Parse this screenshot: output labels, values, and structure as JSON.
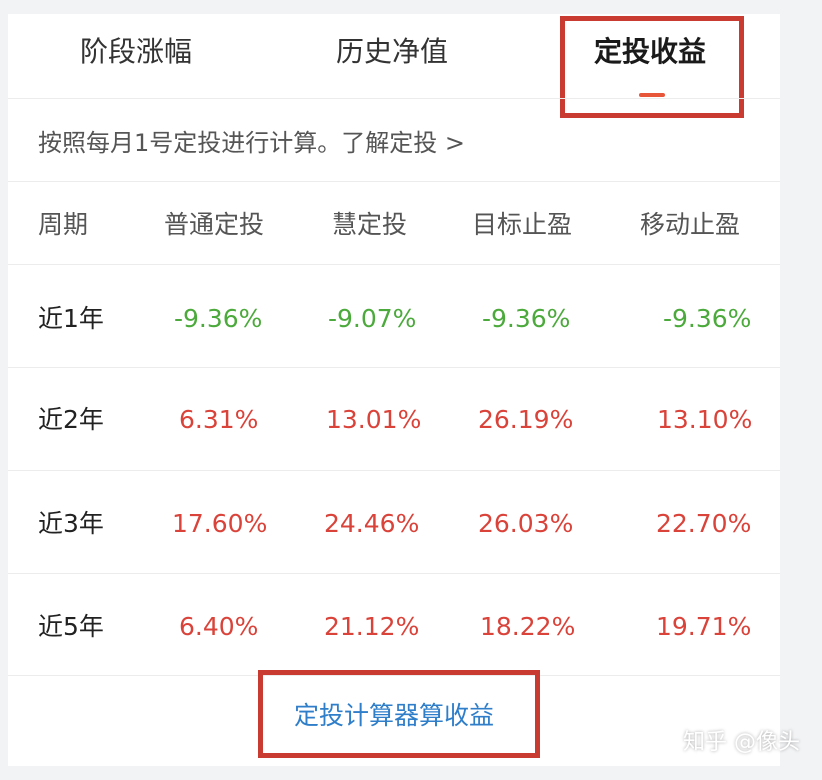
{
  "tabs": [
    {
      "label": "阶段涨幅",
      "active": false
    },
    {
      "label": "历史净值",
      "active": false
    },
    {
      "label": "定投收益",
      "active": true
    }
  ],
  "note": "按照每月1号定投进行计算。了解定投 >",
  "table": {
    "headers": [
      "周期",
      "普通定投",
      "慧定投",
      "目标止盈",
      "移动止盈"
    ],
    "rows": [
      {
        "period": "近1年",
        "values": [
          "-9.36%",
          "-9.07%",
          "-9.36%",
          "-9.36%"
        ],
        "trend": "down"
      },
      {
        "period": "近2年",
        "values": [
          "6.31%",
          "13.01%",
          "26.19%",
          "13.10%"
        ],
        "trend": "up"
      },
      {
        "period": "近3年",
        "values": [
          "17.60%",
          "24.46%",
          "26.03%",
          "22.70%"
        ],
        "trend": "up"
      },
      {
        "period": "近5年",
        "values": [
          "6.40%",
          "21.12%",
          "18.22%",
          "19.71%"
        ],
        "trend": "up"
      }
    ]
  },
  "calculator_link": "定投计算器算收益",
  "watermark": "知乎 @像头",
  "colors": {
    "positive": "#d9433a",
    "negative": "#4caa3c",
    "link": "#2f7ec9",
    "accent": "#e8563a",
    "highlight_box": "#c93a30"
  }
}
